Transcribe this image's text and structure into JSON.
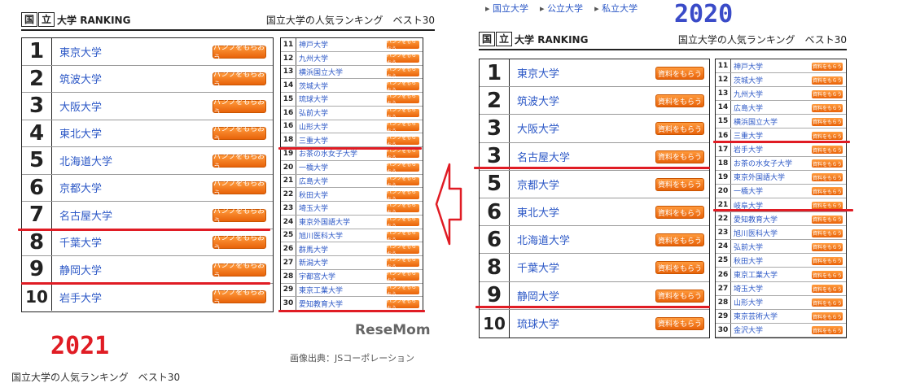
{
  "left": {
    "header": {
      "box1": "国",
      "box2": "立",
      "rank_label": "大学 RANKING",
      "subtitle": "国立大学の人気ランキング　ベスト30"
    },
    "year": "2021",
    "caption": "国立大学の人気ランキング　ベスト30",
    "credit": "画像出典：JSコーポレーション",
    "logo": "ReseMom",
    "button_label": "パンフをもらおう",
    "top10": [
      {
        "rank": "1",
        "name": "東京大学"
      },
      {
        "rank": "2",
        "name": "筑波大学"
      },
      {
        "rank": "3",
        "name": "大阪大学"
      },
      {
        "rank": "4",
        "name": "東北大学"
      },
      {
        "rank": "5",
        "name": "北海道大学"
      },
      {
        "rank": "6",
        "name": "京都大学"
      },
      {
        "rank": "7",
        "name": "名古屋大学"
      },
      {
        "rank": "8",
        "name": "千葉大学"
      },
      {
        "rank": "9",
        "name": "静岡大学"
      },
      {
        "rank": "10",
        "name": "岩手大学"
      }
    ],
    "rest": [
      {
        "rank": "11",
        "name": "神戸大学"
      },
      {
        "rank": "12",
        "name": "九州大学"
      },
      {
        "rank": "13",
        "name": "横浜国立大学"
      },
      {
        "rank": "14",
        "name": "茨城大学"
      },
      {
        "rank": "15",
        "name": "琉球大学"
      },
      {
        "rank": "16",
        "name": "弘前大学"
      },
      {
        "rank": "16",
        "name": "山形大学"
      },
      {
        "rank": "18",
        "name": "三重大学"
      },
      {
        "rank": "19",
        "name": "お茶の水女子大学"
      },
      {
        "rank": "20",
        "name": "一橋大学"
      },
      {
        "rank": "21",
        "name": "広島大学"
      },
      {
        "rank": "22",
        "name": "秋田大学"
      },
      {
        "rank": "23",
        "name": "埼玉大学"
      },
      {
        "rank": "24",
        "name": "東京外国語大学"
      },
      {
        "rank": "25",
        "name": "旭川医科大学"
      },
      {
        "rank": "26",
        "name": "群馬大学"
      },
      {
        "rank": "27",
        "name": "新潟大学"
      },
      {
        "rank": "28",
        "name": "宇都宮大学"
      },
      {
        "rank": "29",
        "name": "東京工業大学"
      },
      {
        "rank": "30",
        "name": "愛知教育大学"
      }
    ]
  },
  "right": {
    "breadcrumbs": [
      "国立大学",
      "公立大学",
      "私立大学"
    ],
    "header": {
      "box1": "国",
      "box2": "立",
      "rank_label": "大学 RANKING",
      "subtitle": "国立大学の人気ランキング　ベスト30"
    },
    "year": "2020",
    "button_label": "資料をもらう",
    "top10": [
      {
        "rank": "1",
        "name": "東京大学"
      },
      {
        "rank": "2",
        "name": "筑波大学"
      },
      {
        "rank": "3",
        "name": "大阪大学"
      },
      {
        "rank": "3",
        "name": "名古屋大学"
      },
      {
        "rank": "5",
        "name": "京都大学"
      },
      {
        "rank": "6",
        "name": "東北大学"
      },
      {
        "rank": "6",
        "name": "北海道大学"
      },
      {
        "rank": "8",
        "name": "千葉大学"
      },
      {
        "rank": "9",
        "name": "静岡大学"
      },
      {
        "rank": "10",
        "name": "琉球大学"
      }
    ],
    "rest": [
      {
        "rank": "11",
        "name": "神戸大学"
      },
      {
        "rank": "12",
        "name": "茨城大学"
      },
      {
        "rank": "13",
        "name": "九州大学"
      },
      {
        "rank": "14",
        "name": "広島大学"
      },
      {
        "rank": "15",
        "name": "横浜国立大学"
      },
      {
        "rank": "16",
        "name": "三重大学"
      },
      {
        "rank": "17",
        "name": "岩手大学"
      },
      {
        "rank": "18",
        "name": "お茶の水女子大学"
      },
      {
        "rank": "19",
        "name": "東京外国語大学"
      },
      {
        "rank": "20",
        "name": "一橋大学"
      },
      {
        "rank": "21",
        "name": "岐阜大学"
      },
      {
        "rank": "22",
        "name": "愛知教育大学"
      },
      {
        "rank": "23",
        "name": "旭川医科大学"
      },
      {
        "rank": "24",
        "name": "弘前大学"
      },
      {
        "rank": "25",
        "name": "秋田大学"
      },
      {
        "rank": "26",
        "name": "東京工業大学"
      },
      {
        "rank": "27",
        "name": "埼玉大学"
      },
      {
        "rank": "28",
        "name": "山形大学"
      },
      {
        "rank": "29",
        "name": "東京芸術大学"
      },
      {
        "rank": "30",
        "name": "金沢大学"
      }
    ]
  },
  "colors": {
    "accent_red": "#e01c24",
    "link_blue": "#2b57c6",
    "button_orange": "#f07a1a",
    "year_2021": "#e01c24",
    "year_2020": "#3a4bc8"
  }
}
